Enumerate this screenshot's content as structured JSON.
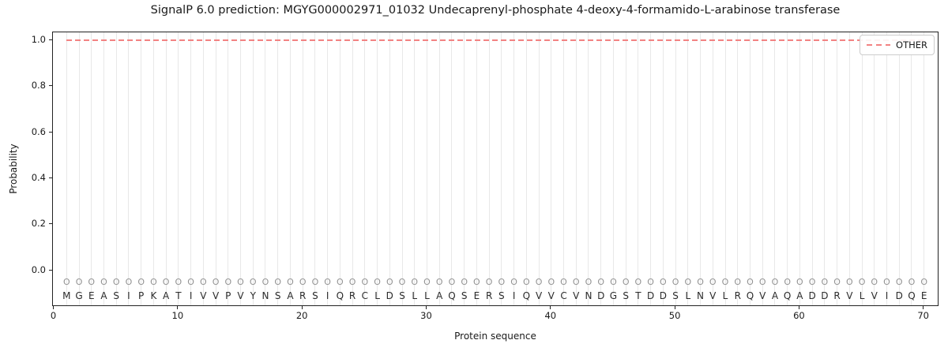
{
  "figure": {
    "title": "SignalP 6.0 prediction: MGYG000002971_01032 Undecaprenyl-phosphate 4-deoxy-4-formamido-L-arabinose transferase",
    "xlabel": "Protein sequence",
    "ylabel": "Probability",
    "legend": {
      "position": "upper right",
      "entries": [
        {
          "label": "OTHER",
          "color": "#f28282",
          "style": "dashed"
        }
      ]
    }
  },
  "chart_data": {
    "type": "line",
    "title": "SignalP 6.0 prediction: MGYG000002971_01032 Undecaprenyl-phosphate 4-deoxy-4-formamido-L-arabinose transferase",
    "xlabel": "Protein sequence",
    "ylabel": "Probability",
    "xlim": [
      -0.1,
      71.1
    ],
    "ylim": [
      -0.15,
      1.035
    ],
    "xticks": [
      0,
      10,
      20,
      30,
      40,
      50,
      60,
      70
    ],
    "yticks": [
      "0.0",
      "0.2",
      "0.4",
      "0.6",
      "0.8",
      "1.0"
    ],
    "grid": "vertical-line-per-residue",
    "legend_position": "upper right",
    "sequence": "MGEASIPKATIVVPVYNSARSIQRCLDSLLAQSERSIQVVCVNDGSTDDSLNVLRQVAQADDRVLVIDQE",
    "position_labels": "OOOOOOOOOOOOOOOOOOOOOOOOOOOOOOOOOOOOOOOOOOOOOOOOOOOOOOOOOOOOOOOOOOOOOO",
    "marker_row_y": -0.05,
    "letter_row_y": -0.11,
    "series": [
      {
        "name": "OTHER",
        "color": "#f28282",
        "style": "dashed",
        "x_start": 1,
        "x_end": 70,
        "values": [
          1.0,
          1.0,
          1.0,
          1.0,
          1.0,
          1.0,
          1.0,
          1.0,
          1.0,
          1.0,
          1.0,
          1.0,
          1.0,
          1.0,
          1.0,
          1.0,
          1.0,
          1.0,
          1.0,
          1.0,
          1.0,
          1.0,
          1.0,
          1.0,
          1.0,
          1.0,
          1.0,
          1.0,
          1.0,
          1.0,
          1.0,
          1.0,
          1.0,
          1.0,
          1.0,
          1.0,
          1.0,
          1.0,
          1.0,
          1.0,
          1.0,
          1.0,
          1.0,
          1.0,
          1.0,
          1.0,
          1.0,
          1.0,
          1.0,
          1.0,
          1.0,
          1.0,
          1.0,
          1.0,
          1.0,
          1.0,
          1.0,
          1.0,
          1.0,
          1.0,
          1.0,
          1.0,
          1.0,
          1.0,
          1.0,
          1.0,
          1.0,
          1.0,
          1.0,
          1.0
        ]
      }
    ],
    "colors": {
      "line": "#f28282",
      "grid": "#e8e8e8",
      "marker": "#929292",
      "letter": "#2b2b2b",
      "spine": "#222222"
    }
  }
}
